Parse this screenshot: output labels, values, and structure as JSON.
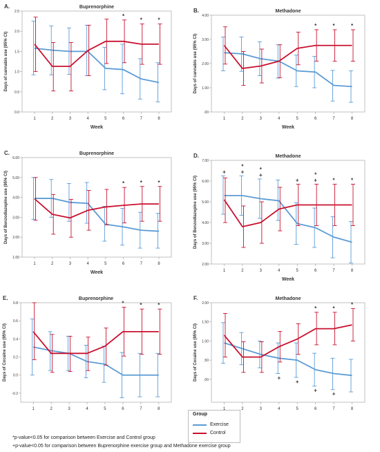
{
  "chart_data": [
    {
      "type": "line",
      "panel_label": "A.",
      "title": "Buprenorphine",
      "xlabel": "Week",
      "ylabel": "Days of cannabis use (95% CI)",
      "x": [
        1,
        2,
        3,
        4,
        5,
        6,
        7,
        8
      ],
      "ylim": [
        0.0,
        2.5
      ],
      "yticks": [
        "0.0",
        "0.5",
        "1.0",
        "1.5",
        "2.0",
        "2.5"
      ],
      "ytick_values": [
        0,
        0.5,
        1,
        1.5,
        2,
        2.5
      ],
      "series": [
        {
          "name": "Exercise",
          "values": [
            1.58,
            1.53,
            1.5,
            1.5,
            1.08,
            1.05,
            0.82,
            0.73
          ],
          "ci_low": [
            0.92,
            0.92,
            0.93,
            0.9,
            0.55,
            0.45,
            0.32,
            0.25
          ],
          "ci_high": [
            2.25,
            2.13,
            2.08,
            2.15,
            1.6,
            1.68,
            1.32,
            1.22
          ]
        },
        {
          "name": "Control",
          "values": [
            1.68,
            1.13,
            1.13,
            1.52,
            1.75,
            1.75,
            1.68,
            1.68
          ],
          "ci_low": [
            1.0,
            0.52,
            0.52,
            0.9,
            1.2,
            1.22,
            1.18,
            1.18
          ],
          "ci_high": [
            2.35,
            1.72,
            1.72,
            2.15,
            2.3,
            2.28,
            2.18,
            2.18
          ]
        }
      ],
      "annotations": [
        {
          "week": 6,
          "text": "*"
        },
        {
          "week": 7,
          "text": "*"
        },
        {
          "week": 8,
          "text": "*"
        }
      ]
    },
    {
      "type": "line",
      "panel_label": "B.",
      "title": "Methadone",
      "xlabel": "Week",
      "ylabel": "Days of cannabis use (95% CI)",
      "x": [
        1,
        2,
        3,
        4,
        5,
        6,
        7,
        8
      ],
      "ylim": [
        0.0,
        4.0
      ],
      "yticks": [
        ".00",
        "1.00",
        "2.00",
        "3.00",
        "4.00"
      ],
      "ytick_values": [
        0,
        1,
        2,
        3,
        4
      ],
      "series": [
        {
          "name": "Exercise",
          "values": [
            2.45,
            2.4,
            2.2,
            2.1,
            1.7,
            1.65,
            1.1,
            1.05
          ],
          "ci_low": [
            1.7,
            1.68,
            1.5,
            1.4,
            1.05,
            1.0,
            0.45,
            0.4
          ],
          "ci_high": [
            3.1,
            3.1,
            2.9,
            2.78,
            2.35,
            2.3,
            1.72,
            1.7
          ]
        },
        {
          "name": "Control",
          "values": [
            2.75,
            1.8,
            1.9,
            2.1,
            2.63,
            2.75,
            2.75,
            2.75
          ],
          "ci_low": [
            1.98,
            1.1,
            1.2,
            1.42,
            1.95,
            2.1,
            2.1,
            2.1
          ],
          "ci_high": [
            3.52,
            2.5,
            2.6,
            2.78,
            3.3,
            3.4,
            3.4,
            3.4
          ]
        }
      ],
      "annotations": [
        {
          "week": 6,
          "text": "*"
        },
        {
          "week": 7,
          "text": "*"
        },
        {
          "week": 8,
          "text": "*"
        }
      ]
    },
    {
      "type": "line",
      "panel_label": "C.",
      "title": "Buprenorphine",
      "xlabel": "Week",
      "ylabel": "Days of Benzodiazepine use (95% CI)",
      "x": [
        1,
        2,
        3,
        4,
        5,
        6,
        7,
        8
      ],
      "ylim": [
        1.0,
        6.0
      ],
      "yticks": [
        "1.00",
        "2.00",
        "3.00",
        "4.00",
        "5.00",
        "6.00"
      ],
      "ytick_values": [
        1,
        2,
        3,
        4,
        5,
        6
      ],
      "series": [
        {
          "name": "Exercise",
          "values": [
            3.95,
            3.95,
            3.75,
            3.7,
            2.65,
            2.52,
            2.35,
            2.3
          ],
          "ci_low": [
            2.9,
            3.0,
            2.8,
            2.7,
            1.8,
            1.6,
            1.45,
            1.45
          ],
          "ci_high": [
            5.0,
            4.9,
            4.7,
            4.75,
            3.55,
            3.45,
            3.25,
            3.2
          ]
        },
        {
          "name": "Control",
          "values": [
            3.93,
            3.15,
            2.97,
            3.35,
            3.52,
            3.6,
            3.67,
            3.67
          ],
          "ci_low": [
            2.85,
            2.15,
            2.0,
            2.35,
            2.62,
            2.72,
            2.8,
            2.8
          ],
          "ci_high": [
            5.0,
            4.15,
            3.9,
            4.35,
            4.4,
            4.5,
            4.55,
            4.55
          ]
        }
      ],
      "annotations": [
        {
          "week": 6,
          "text": "*"
        },
        {
          "week": 7,
          "text": "*"
        },
        {
          "week": 8,
          "text": "*"
        }
      ]
    },
    {
      "type": "line",
      "panel_label": "D.",
      "title": "Methadone",
      "xlabel": "Week",
      "ylabel": "Days of Benzodiazepine use (95% CI)",
      "x": [
        1,
        2,
        3,
        4,
        5,
        6,
        7,
        8
      ],
      "ylim": [
        2.0,
        7.0
      ],
      "yticks": [
        "2.00",
        "3.00",
        "4.00",
        "5.00",
        "6.00",
        "7.00"
      ],
      "ytick_values": [
        2,
        3,
        4,
        5,
        6,
        7
      ],
      "series": [
        {
          "name": "Exercise",
          "values": [
            5.3,
            5.3,
            5.15,
            5.05,
            3.95,
            3.75,
            3.3,
            3.05
          ],
          "ci_low": [
            4.4,
            4.35,
            4.2,
            4.1,
            2.95,
            2.8,
            2.3,
            2.05
          ],
          "ci_high": [
            6.25,
            6.25,
            6.1,
            6.05,
            4.95,
            4.7,
            4.28,
            4.05
          ]
        },
        {
          "name": "Control",
          "values": [
            5.1,
            3.8,
            4.0,
            4.65,
            4.85,
            4.85,
            4.85,
            4.85
          ],
          "ci_low": [
            4.0,
            2.8,
            3.0,
            3.6,
            3.85,
            3.85,
            3.85,
            3.85
          ],
          "ci_high": [
            6.15,
            4.8,
            5.0,
            5.7,
            5.85,
            5.85,
            5.85,
            5.85
          ]
        }
      ],
      "annotations": [
        {
          "week": 1,
          "text": "+"
        },
        {
          "week": 2,
          "text": "* +"
        },
        {
          "week": 3,
          "text": "* +"
        },
        {
          "week": 5,
          "text": "+"
        },
        {
          "week": 6,
          "text": "* +"
        },
        {
          "week": 7,
          "text": "*"
        },
        {
          "week": 8,
          "text": "*"
        }
      ]
    },
    {
      "type": "line",
      "panel_label": "E.",
      "title": "Buprenorphine",
      "xlabel": "Week",
      "ylabel": "Days of Cocaine use (95% CI)",
      "x": [
        1,
        2,
        3,
        4,
        5,
        6,
        7,
        8
      ],
      "ylim": [
        -0.3,
        0.8
      ],
      "yticks": [
        "-0.2",
        "0.0",
        "0.2",
        "0.4",
        "0.6",
        "0.8"
      ],
      "ytick_values": [
        -0.2,
        0,
        0.2,
        0.4,
        0.6,
        0.8
      ],
      "series": [
        {
          "name": "Exercise",
          "values": [
            0.31,
            0.27,
            0.24,
            0.15,
            0.12,
            0.0,
            0.0,
            0.0
          ],
          "ci_low": [
            0.0,
            0.05,
            0.05,
            -0.03,
            -0.08,
            -0.25,
            -0.24,
            -0.24
          ],
          "ci_high": [
            0.62,
            0.48,
            0.43,
            0.33,
            0.32,
            0.25,
            0.24,
            0.24
          ]
        },
        {
          "name": "Control",
          "values": [
            0.48,
            0.24,
            0.24,
            0.24,
            0.32,
            0.48,
            0.48,
            0.48
          ],
          "ci_low": [
            0.17,
            0.03,
            0.04,
            0.05,
            0.11,
            0.21,
            0.23,
            0.23
          ],
          "ci_high": [
            0.8,
            0.45,
            0.43,
            0.42,
            0.52,
            0.75,
            0.73,
            0.73
          ]
        }
      ],
      "annotations": [
        {
          "week": 6,
          "text": "*"
        },
        {
          "week": 7,
          "text": "*"
        },
        {
          "week": 8,
          "text": "*"
        }
      ]
    },
    {
      "type": "line",
      "panel_label": "F.",
      "title": "Methadone",
      "xlabel": "Week",
      "ylabel": "Days of Cocaine use (95% CI)",
      "x": [
        1,
        2,
        3,
        4,
        5,
        6,
        7,
        8
      ],
      "ylim": [
        -0.6,
        2.0
      ],
      "yticks": [
        ".00",
        ".50",
        "1.00",
        "1.50",
        "2.00"
      ],
      "ytick_values": [
        0,
        0.5,
        1,
        1.5,
        2
      ],
      "series": [
        {
          "name": "Exercise",
          "values": [
            0.95,
            0.8,
            0.65,
            0.55,
            0.5,
            0.25,
            0.15,
            0.1
          ],
          "ci_low": [
            0.42,
            0.38,
            0.3,
            0.15,
            0.05,
            -0.18,
            -0.27,
            -0.33
          ],
          "ci_high": [
            1.48,
            1.22,
            1.0,
            0.95,
            0.95,
            0.68,
            0.55,
            0.52
          ]
        },
        {
          "name": "Control",
          "values": [
            1.15,
            0.58,
            0.58,
            0.85,
            1.05,
            1.32,
            1.32,
            1.42
          ],
          "ci_low": [
            0.58,
            0.18,
            0.18,
            0.45,
            0.65,
            0.9,
            0.9,
            1.0
          ],
          "ci_high": [
            1.72,
            0.98,
            0.98,
            1.25,
            1.45,
            1.75,
            1.75,
            1.85
          ]
        }
      ],
      "annotations": [
        {
          "week": 6,
          "text": "*"
        },
        {
          "week": 7,
          "text": "*"
        },
        {
          "week": 8,
          "text": "*"
        }
      ],
      "annotations_below": [
        {
          "week": 4,
          "text": "+"
        },
        {
          "week": 5,
          "text": "+"
        },
        {
          "week": 6,
          "text": "+"
        },
        {
          "week": 7,
          "text": "+"
        }
      ]
    }
  ],
  "colors": {
    "exercise": "#5b9bd5",
    "control": "#c8102e",
    "axis": "#999999",
    "text": "#333333"
  },
  "legend": {
    "title": "Group",
    "items": [
      {
        "label": "Exercise",
        "color": "#5b9bd5"
      },
      {
        "label": "Control",
        "color": "#c8102e"
      }
    ]
  },
  "footnotes": [
    "*p-value<0.05 for comparison between  Exercise and Control group",
    "+p-value<0.05 for comparison between Buprenorphine exercise group and Methadone exercise group"
  ]
}
